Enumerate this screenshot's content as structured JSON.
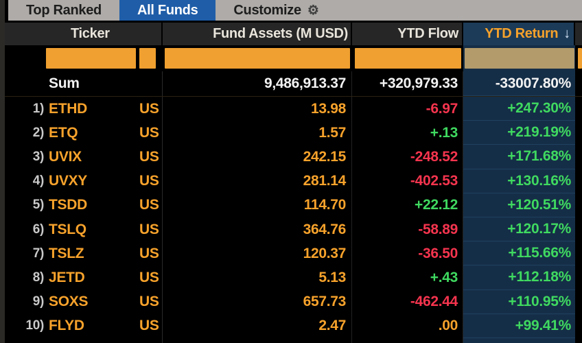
{
  "tabbar": {
    "tabs": [
      {
        "label": "Top Ranked",
        "active": false
      },
      {
        "label": "All Funds",
        "active": true
      },
      {
        "label": "Customize",
        "active": false
      }
    ],
    "gear_icon": "⚙"
  },
  "header": {
    "ticker": "Ticker",
    "fund_assets": "Fund Assets (M USD)",
    "ytd_flow": "YTD Flow",
    "ytd_return": "YTD Return",
    "sort_arrow": "↓"
  },
  "sum_row": {
    "label": "Sum",
    "fund_assets": "9,486,913.37",
    "ytd_flow": "+320,979.33",
    "ytd_return": "-33007.80%"
  },
  "rows": [
    {
      "num": "1)",
      "ticker": "ETHD",
      "exchange": "US",
      "fund_assets": "13.98",
      "ytd_flow": "-6.97",
      "flow_tone": "neg",
      "ytd_return": "+247.30%"
    },
    {
      "num": "2)",
      "ticker": "ETQ",
      "exchange": "US",
      "fund_assets": "1.57",
      "ytd_flow": "+.13",
      "flow_tone": "pos",
      "ytd_return": "+219.19%"
    },
    {
      "num": "3)",
      "ticker": "UVIX",
      "exchange": "US",
      "fund_assets": "242.15",
      "ytd_flow": "-248.52",
      "flow_tone": "neg",
      "ytd_return": "+171.68%"
    },
    {
      "num": "4)",
      "ticker": "UVXY",
      "exchange": "US",
      "fund_assets": "281.14",
      "ytd_flow": "-402.53",
      "flow_tone": "neg",
      "ytd_return": "+130.16%"
    },
    {
      "num": "5)",
      "ticker": "TSDD",
      "exchange": "US",
      "fund_assets": "114.70",
      "ytd_flow": "+22.12",
      "flow_tone": "pos",
      "ytd_return": "+120.51%"
    },
    {
      "num": "6)",
      "ticker": "TSLQ",
      "exchange": "US",
      "fund_assets": "364.76",
      "ytd_flow": "-58.89",
      "flow_tone": "neg",
      "ytd_return": "+120.17%"
    },
    {
      "num": "7)",
      "ticker": "TSLZ",
      "exchange": "US",
      "fund_assets": "120.37",
      "ytd_flow": "-36.50",
      "flow_tone": "neg",
      "ytd_return": "+115.66%"
    },
    {
      "num": "8)",
      "ticker": "JETD",
      "exchange": "US",
      "fund_assets": "5.13",
      "ytd_flow": "+.43",
      "flow_tone": "pos",
      "ytd_return": "+112.18%"
    },
    {
      "num": "9)",
      "ticker": "SOXS",
      "exchange": "US",
      "fund_assets": "657.73",
      "ytd_flow": "-462.44",
      "flow_tone": "neg",
      "ytd_return": "+110.95%"
    },
    {
      "num": "10)",
      "ticker": "FLYD",
      "exchange": "US",
      "fund_assets": "2.47",
      "ytd_flow": ".00",
      "flow_tone": "zero",
      "ytd_return": "+99.41%"
    }
  ],
  "colors": {
    "amber": "#f7a22b",
    "red": "#f5344e",
    "green": "#3fd960",
    "tab_active_bg": "#1f5da8",
    "return_col_bg": "#152e47",
    "return_header_bg": "#1c3b58",
    "filter_box": "#f0a030",
    "filter_box_muted": "#b39b6b"
  }
}
